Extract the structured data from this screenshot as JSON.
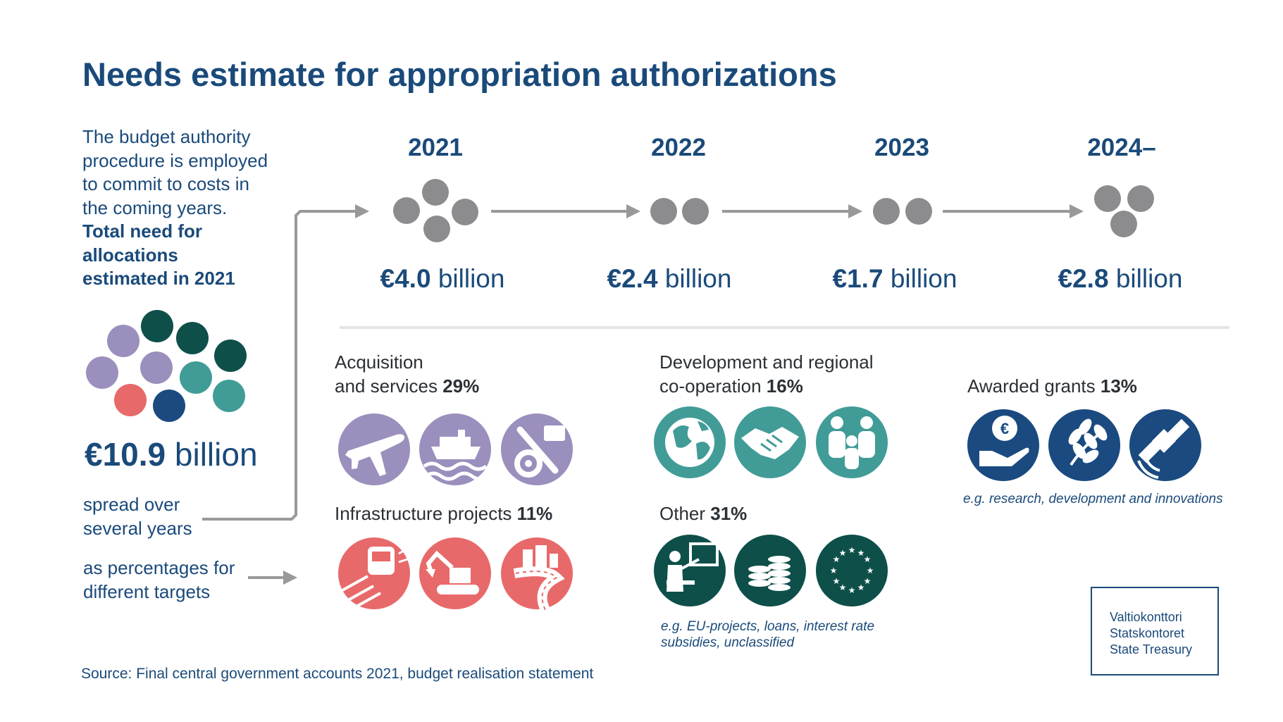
{
  "title": "Needs estimate for appropriation authorizations",
  "intro": {
    "text_lines": [
      "The budget authority",
      "procedure is employed",
      "to commit to costs in",
      "the coming years."
    ],
    "bold_lines": [
      "Total need for",
      "allocations",
      "estimated in 2021"
    ]
  },
  "total": {
    "value": "10.9",
    "unit": "billion",
    "currency": "€"
  },
  "spread_lines": [
    "spread over",
    "several years"
  ],
  "percentages_lines": [
    "as percentages for",
    "different targets"
  ],
  "timeline": [
    {
      "year": "2021",
      "value": "4.0",
      "unit": "billion",
      "currency": "€",
      "dots": 4
    },
    {
      "year": "2022",
      "value": "2.4",
      "unit": "billion",
      "currency": "€",
      "dots": 2
    },
    {
      "year": "2023",
      "value": "1.7",
      "unit": "billion",
      "currency": "€",
      "dots": 2
    },
    {
      "year": "2024–",
      "value": "2.8",
      "unit": "billion",
      "currency": "€",
      "dots": 3
    }
  ],
  "categories": {
    "acquisition": {
      "line1": "Acquisition",
      "line2": "and services",
      "percent": "29%",
      "color": "#9b8fbd",
      "icons": [
        "airplane-icon",
        "ship-icon",
        "tools-icon"
      ]
    },
    "development": {
      "line1": "Development and regional",
      "line2": "co-operation",
      "percent": "16%",
      "color": "#419c98",
      "icons": [
        "globe-icon",
        "handshake-icon",
        "people-icon"
      ]
    },
    "grants": {
      "label": "Awarded grants",
      "percent": "13%",
      "color": "#1a4a80",
      "icons": [
        "euro-hand-icon",
        "laurel-icon",
        "satellite-icon"
      ],
      "note": "e.g. research, development and innovations"
    },
    "infrastructure": {
      "label": "Infrastructure projects",
      "percent": "11%",
      "color": "#e8696a",
      "icons": [
        "train-icon",
        "excavator-icon",
        "road-icon"
      ]
    },
    "other": {
      "label": "Other",
      "percent": "31%",
      "color": "#0e4f4a",
      "icons": [
        "teacher-icon",
        "coins-icon",
        "eu-flag-icon"
      ],
      "note_lines": [
        "e.g. EU-projects, loans, interest rate",
        "subsidies, unclassified"
      ]
    }
  },
  "source": "Source: Final central government accounts 2021, budget realisation statement",
  "logo": [
    "Valtiokonttori",
    "Statskontoret",
    "State Treasury"
  ],
  "colors": {
    "navy": "#1a4a7a",
    "grey_dot": "#8c8c8f",
    "arrow": "#999999"
  }
}
